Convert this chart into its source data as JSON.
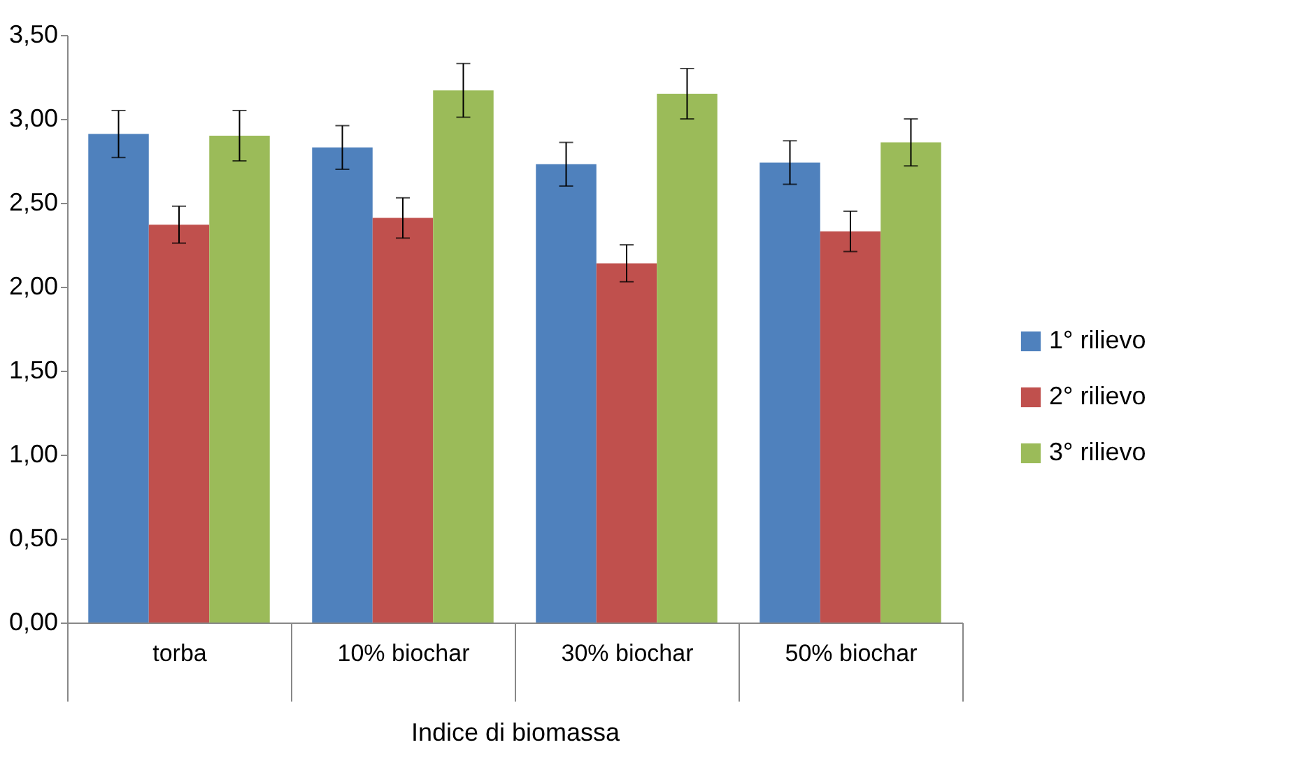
{
  "chart_data": {
    "type": "bar",
    "xlabel": "Indice di biomassa",
    "categories": [
      "torba",
      "10% biochar",
      "30% biochar",
      "50% biochar"
    ],
    "series": [
      {
        "name": "1° rilievo",
        "color": "#4f81bd",
        "values": [
          2.91,
          2.83,
          2.73,
          2.74
        ],
        "errors": [
          0.14,
          0.13,
          0.13,
          0.13
        ]
      },
      {
        "name": "2° rilievo",
        "color": "#c0504d",
        "values": [
          2.37,
          2.41,
          2.14,
          2.33
        ],
        "errors": [
          0.11,
          0.12,
          0.11,
          0.12
        ]
      },
      {
        "name": "3° rilievo",
        "color": "#9bbb59",
        "values": [
          2.9,
          3.17,
          3.15,
          2.86
        ],
        "errors": [
          0.15,
          0.16,
          0.15,
          0.14
        ]
      }
    ],
    "ylim": [
      0,
      3.5
    ],
    "yticks": [
      {
        "value": 0,
        "label": "0,00"
      },
      {
        "value": 0.5,
        "label": "0,50"
      },
      {
        "value": 1,
        "label": "1,00"
      },
      {
        "value": 1.5,
        "label": "1,50"
      },
      {
        "value": 2,
        "label": "2,00"
      },
      {
        "value": 2.5,
        "label": "2,50"
      },
      {
        "value": 3,
        "label": "3,00"
      },
      {
        "value": 3.5,
        "label": "3,50"
      }
    ],
    "grid": false,
    "legend": "right"
  }
}
